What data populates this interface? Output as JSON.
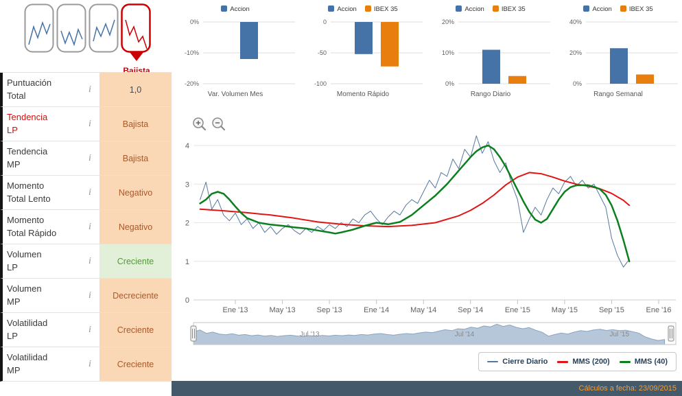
{
  "header_icons": {
    "trend_state_label": "Bajista"
  },
  "sidebar": {
    "info_icon_glyph": "i",
    "rows": [
      {
        "line1": "Puntuación",
        "line2": "Total",
        "value": "1,0",
        "state": "warn"
      },
      {
        "line1": "Tendencia",
        "line2": "LP",
        "value": "Bajista",
        "state": "warn"
      },
      {
        "line1": "Tendencia",
        "line2": "MP",
        "value": "Bajista",
        "state": "warn"
      },
      {
        "line1": "Momento",
        "line2": "Total Lento",
        "value": "Negativo",
        "state": "warn"
      },
      {
        "line1": "Momento",
        "line2": "Total Rápido",
        "value": "Negativo",
        "state": "warn"
      },
      {
        "line1": "Volumen",
        "line2": "LP",
        "value": "Creciente",
        "state": "good"
      },
      {
        "line1": "Volumen",
        "line2": "MP",
        "value": "Decreciente",
        "state": "warn"
      },
      {
        "line1": "Volatilidad",
        "line2": "LP",
        "value": "Creciente",
        "state": "warn"
      },
      {
        "line1": "Volatilidad",
        "line2": "MP",
        "value": "Creciente",
        "state": "warn"
      }
    ]
  },
  "colors": {
    "accion_blue": "#4572a7",
    "ibex_orange": "#e87e0e",
    "warn_bg": "#fad7b5",
    "warn_text": "#a85a2b",
    "good_bg": "#e2f0da",
    "good_text": "#56963f",
    "alert_red": "#cc0000",
    "footer_bg": "#44596a",
    "footer_text": "#f19e39"
  },
  "chart_data": [
    {
      "id": "mini1",
      "type": "bar",
      "title": "Var. Volumen Mes",
      "ylim": [
        -20,
        0
      ],
      "yticks": [
        {
          "v": 0,
          "label": "0%"
        },
        {
          "v": -10,
          "label": "-10%"
        },
        {
          "v": -20,
          "label": "-20%"
        }
      ],
      "series": [
        {
          "name": "Accion",
          "color": "#4572a7",
          "value": -12
        }
      ]
    },
    {
      "id": "mini2",
      "type": "bar",
      "title": "Momento Rápido",
      "ylim": [
        -100,
        0
      ],
      "yticks": [
        {
          "v": 0,
          "label": "0"
        },
        {
          "v": -50,
          "label": "-50"
        },
        {
          "v": -100,
          "label": "-100"
        }
      ],
      "series": [
        {
          "name": "Accion",
          "color": "#4572a7",
          "value": -52
        },
        {
          "name": "IBEX 35",
          "color": "#e87e0e",
          "value": -72
        }
      ]
    },
    {
      "id": "mini3",
      "type": "bar",
      "title": "Rango Diario",
      "ylim": [
        0,
        20
      ],
      "yticks": [
        {
          "v": 20,
          "label": "20%"
        },
        {
          "v": 10,
          "label": "10%"
        },
        {
          "v": 0,
          "label": "0%"
        }
      ],
      "series": [
        {
          "name": "Accion",
          "color": "#4572a7",
          "value": 11
        },
        {
          "name": "IBEX 35",
          "color": "#e87e0e",
          "value": 2.5
        }
      ]
    },
    {
      "id": "mini4",
      "type": "bar",
      "title": "Rango Semanal",
      "ylim": [
        0,
        40
      ],
      "yticks": [
        {
          "v": 40,
          "label": "40%"
        },
        {
          "v": 20,
          "label": "20%"
        },
        {
          "v": 0,
          "label": "0%"
        }
      ],
      "series": [
        {
          "name": "Accion",
          "color": "#4572a7",
          "value": 23
        },
        {
          "name": "IBEX 35",
          "color": "#e87e0e",
          "value": 6
        }
      ]
    },
    {
      "id": "main",
      "type": "line",
      "y_axis": {
        "ticks": [
          0,
          1,
          2,
          3,
          4
        ],
        "ylim": [
          0,
          4.4
        ]
      },
      "x_axis": {
        "ticks": [
          {
            "m": 0,
            "label": "Ene '13"
          },
          {
            "m": 4,
            "label": "May '13"
          },
          {
            "m": 8,
            "label": "Sep '13"
          },
          {
            "m": 12,
            "label": "Ene '14"
          },
          {
            "m": 16,
            "label": "May '14"
          },
          {
            "m": 20,
            "label": "Sep '14"
          },
          {
            "m": 24,
            "label": "Ene '15"
          },
          {
            "m": 28,
            "label": "May '15"
          },
          {
            "m": 32,
            "label": "Sep '15"
          },
          {
            "m": 36,
            "label": "Ene '16"
          }
        ]
      },
      "series": [
        {
          "name": "Cierre Diario",
          "color": "#54779f",
          "width": 1,
          "x0": -3,
          "dx": 0.5,
          "values": [
            2.6,
            3.05,
            2.35,
            2.6,
            2.2,
            2.05,
            2.25,
            1.95,
            2.1,
            1.85,
            2.0,
            1.75,
            1.9,
            1.7,
            1.85,
            1.95,
            1.8,
            1.7,
            1.85,
            1.75,
            1.9,
            1.8,
            1.95,
            1.85,
            2.0,
            1.9,
            2.1,
            2.0,
            2.2,
            2.3,
            2.1,
            1.95,
            2.15,
            2.3,
            2.2,
            2.45,
            2.6,
            2.5,
            2.8,
            3.1,
            2.9,
            3.3,
            3.2,
            3.65,
            3.4,
            3.9,
            3.7,
            4.25,
            3.8,
            4.1,
            3.6,
            3.3,
            3.55,
            3.0,
            2.6,
            1.75,
            2.1,
            2.4,
            2.2,
            2.6,
            2.9,
            2.75,
            3.05,
            3.2,
            2.95,
            3.1,
            2.9,
            3.0,
            2.7,
            2.4,
            1.6,
            1.15,
            0.85,
            1.05
          ]
        },
        {
          "name": "MMS (200)",
          "color": "#e11414",
          "width": 2,
          "points": [
            [
              -3,
              2.35
            ],
            [
              -1,
              2.31
            ],
            [
              1,
              2.26
            ],
            [
              3,
              2.2
            ],
            [
              5,
              2.12
            ],
            [
              7,
              2.02
            ],
            [
              9,
              1.96
            ],
            [
              11,
              1.92
            ],
            [
              13,
              1.9
            ],
            [
              15,
              1.93
            ],
            [
              17,
              2.0
            ],
            [
              19,
              2.18
            ],
            [
              20,
              2.32
            ],
            [
              21,
              2.5
            ],
            [
              22,
              2.72
            ],
            [
              23,
              2.98
            ],
            [
              24,
              3.18
            ],
            [
              25,
              3.3
            ],
            [
              26,
              3.27
            ],
            [
              27,
              3.18
            ],
            [
              28,
              3.08
            ],
            [
              29,
              3.0
            ],
            [
              30,
              2.95
            ],
            [
              31,
              2.88
            ],
            [
              32,
              2.76
            ],
            [
              33,
              2.58
            ],
            [
              33.5,
              2.45
            ]
          ]
        },
        {
          "name": "MMS (40)",
          "color": "#0a7f1e",
          "width": 2.5,
          "points": [
            [
              -3,
              2.5
            ],
            [
              -2.5,
              2.6
            ],
            [
              -2,
              2.75
            ],
            [
              -1.5,
              2.8
            ],
            [
              -1,
              2.75
            ],
            [
              -0.5,
              2.6
            ],
            [
              0,
              2.42
            ],
            [
              0.5,
              2.25
            ],
            [
              1,
              2.12
            ],
            [
              2,
              2.0
            ],
            [
              3,
              1.95
            ],
            [
              4,
              1.92
            ],
            [
              5,
              1.88
            ],
            [
              6,
              1.85
            ],
            [
              7,
              1.8
            ],
            [
              8,
              1.75
            ],
            [
              8.5,
              1.72
            ],
            [
              9,
              1.75
            ],
            [
              10,
              1.82
            ],
            [
              11,
              1.92
            ],
            [
              12,
              2.0
            ],
            [
              13,
              1.96
            ],
            [
              14,
              2.02
            ],
            [
              15,
              2.2
            ],
            [
              16,
              2.45
            ],
            [
              17,
              2.7
            ],
            [
              18,
              3.0
            ],
            [
              19,
              3.35
            ],
            [
              20,
              3.7
            ],
            [
              20.5,
              3.85
            ],
            [
              21,
              3.95
            ],
            [
              21.5,
              4.0
            ],
            [
              22,
              3.9
            ],
            [
              22.5,
              3.7
            ],
            [
              23,
              3.45
            ],
            [
              23.5,
              3.15
            ],
            [
              24,
              2.85
            ],
            [
              24.5,
              2.55
            ],
            [
              25,
              2.28
            ],
            [
              25.5,
              2.08
            ],
            [
              26,
              2.0
            ],
            [
              26.5,
              2.1
            ],
            [
              27,
              2.35
            ],
            [
              27.5,
              2.6
            ],
            [
              28,
              2.8
            ],
            [
              28.5,
              2.92
            ],
            [
              29,
              2.97
            ],
            [
              30,
              2.97
            ],
            [
              30.5,
              2.93
            ],
            [
              31,
              2.87
            ],
            [
              31.5,
              2.72
            ],
            [
              32,
              2.45
            ],
            [
              32.5,
              2.05
            ],
            [
              33,
              1.55
            ],
            [
              33.5,
              1.0
            ]
          ]
        }
      ],
      "navigator": {
        "labels": [
          {
            "m": 6,
            "text": "Jul '13"
          },
          {
            "m": 18,
            "text": "Jul '14"
          },
          {
            "m": 30,
            "text": "Jul '15"
          }
        ]
      }
    }
  ],
  "footer": {
    "text": "Cálculos a fecha: 23/09/2015"
  }
}
